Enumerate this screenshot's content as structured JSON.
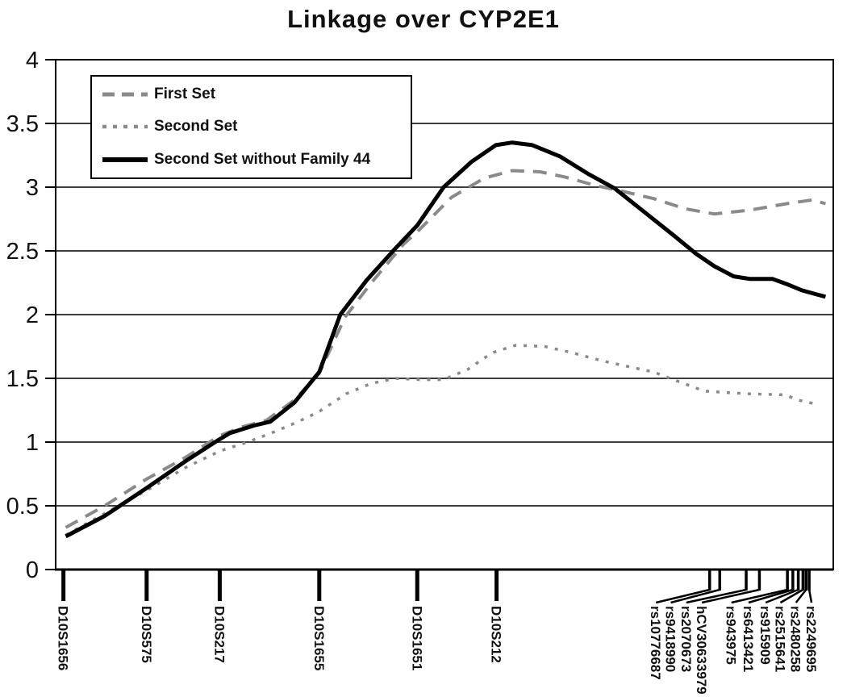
{
  "chart_data": {
    "type": "line",
    "title": "Linkage over CYP2E1",
    "xlabel": "",
    "ylabel": "",
    "ylim": [
      0,
      4
    ],
    "yticks": [
      0,
      0.5,
      1,
      1.5,
      2,
      2.5,
      3,
      3.5,
      4
    ],
    "ytick_labels": [
      "0",
      "0.5",
      "1",
      "1.5",
      "2",
      "2.5",
      "3",
      "3.5",
      "4"
    ],
    "grid": "horizontal",
    "legend_position": "top-left-inside",
    "colors": {
      "primary_line": "#000000",
      "secondary_lines": "#8a8a8a",
      "gridline": "#3d3d3d"
    },
    "x_axis_markers": [
      {
        "label": "D10S1656",
        "pos": 0.01
      },
      {
        "label": "D10S575",
        "pos": 0.117
      },
      {
        "label": "D10S217",
        "pos": 0.211
      },
      {
        "label": "D10S1655",
        "pos": 0.339
      },
      {
        "label": "D10S1651",
        "pos": 0.465
      },
      {
        "label": "D10S212",
        "pos": 0.567
      }
    ],
    "snp_markers": [
      {
        "label": "rs10776687",
        "tick_pos": 0.841,
        "label_pos": 0.772
      },
      {
        "label": "rs9418990",
        "tick_pos": 0.854,
        "label_pos": 0.791
      },
      {
        "label": "rs2070673",
        "tick_pos": 0.888,
        "label_pos": 0.811
      },
      {
        "label": "hCV30633979",
        "tick_pos": 0.905,
        "label_pos": 0.831
      },
      {
        "label": "rs943975",
        "tick_pos": 0.941,
        "label_pos": 0.869
      },
      {
        "label": "rs6413421",
        "tick_pos": 0.948,
        "label_pos": 0.891
      },
      {
        "label": "rs915909",
        "tick_pos": 0.955,
        "label_pos": 0.913
      },
      {
        "label": "rs2515641",
        "tick_pos": 0.961,
        "label_pos": 0.932
      },
      {
        "label": "rs2480258",
        "tick_pos": 0.965,
        "label_pos": 0.952
      },
      {
        "label": "rs2249695",
        "tick_pos": 0.969,
        "label_pos": 0.972
      }
    ],
    "series": [
      {
        "name": "First Set",
        "color": "#8a8a8a",
        "style": "dashed",
        "width": 4,
        "points": [
          [
            0.013,
            0.33
          ],
          [
            0.063,
            0.5
          ],
          [
            0.117,
            0.71
          ],
          [
            0.167,
            0.88
          ],
          [
            0.211,
            1.05
          ],
          [
            0.24,
            1.12
          ],
          [
            0.271,
            1.17
          ],
          [
            0.307,
            1.33
          ],
          [
            0.339,
            1.54
          ],
          [
            0.372,
            1.98
          ],
          [
            0.406,
            2.25
          ],
          [
            0.447,
            2.55
          ],
          [
            0.465,
            2.65
          ],
          [
            0.509,
            2.92
          ],
          [
            0.551,
            3.07
          ],
          [
            0.587,
            3.13
          ],
          [
            0.623,
            3.12
          ],
          [
            0.655,
            3.08
          ],
          [
            0.696,
            3.01
          ],
          [
            0.727,
            2.97
          ],
          [
            0.769,
            2.91
          ],
          [
            0.81,
            2.83
          ],
          [
            0.847,
            2.79
          ],
          [
            0.893,
            2.82
          ],
          [
            0.94,
            2.87
          ],
          [
            0.973,
            2.9
          ],
          [
            0.99,
            2.87
          ]
        ]
      },
      {
        "name": "Second Set",
        "color": "#8a8a8a",
        "style": "dotted",
        "width": 3.5,
        "points": [
          [
            0.013,
            0.27
          ],
          [
            0.063,
            0.44
          ],
          [
            0.117,
            0.62
          ],
          [
            0.167,
            0.8
          ],
          [
            0.211,
            0.93
          ],
          [
            0.247,
            1.0
          ],
          [
            0.281,
            1.08
          ],
          [
            0.312,
            1.16
          ],
          [
            0.339,
            1.24
          ],
          [
            0.374,
            1.38
          ],
          [
            0.406,
            1.46
          ],
          [
            0.437,
            1.5
          ],
          [
            0.468,
            1.49
          ],
          [
            0.499,
            1.49
          ],
          [
            0.53,
            1.57
          ],
          [
            0.561,
            1.7
          ],
          [
            0.592,
            1.76
          ],
          [
            0.629,
            1.75
          ],
          [
            0.665,
            1.7
          ],
          [
            0.701,
            1.64
          ],
          [
            0.738,
            1.59
          ],
          [
            0.769,
            1.55
          ],
          [
            0.79,
            1.5
          ],
          [
            0.834,
            1.4
          ],
          [
            0.886,
            1.38
          ],
          [
            0.938,
            1.37
          ],
          [
            0.955,
            1.33
          ],
          [
            0.976,
            1.3
          ]
        ]
      },
      {
        "name": "Second Set without Family 44",
        "color": "#000000",
        "style": "solid",
        "width": 5,
        "points": [
          [
            0.013,
            0.26
          ],
          [
            0.063,
            0.42
          ],
          [
            0.117,
            0.64
          ],
          [
            0.167,
            0.85
          ],
          [
            0.205,
            1.0
          ],
          [
            0.224,
            1.07
          ],
          [
            0.255,
            1.13
          ],
          [
            0.276,
            1.16
          ],
          [
            0.307,
            1.31
          ],
          [
            0.339,
            1.55
          ],
          [
            0.366,
            2.0
          ],
          [
            0.4,
            2.27
          ],
          [
            0.437,
            2.52
          ],
          [
            0.465,
            2.7
          ],
          [
            0.499,
            3.0
          ],
          [
            0.535,
            3.2
          ],
          [
            0.566,
            3.33
          ],
          [
            0.587,
            3.35
          ],
          [
            0.613,
            3.33
          ],
          [
            0.649,
            3.24
          ],
          [
            0.686,
            3.1
          ],
          [
            0.719,
            2.99
          ],
          [
            0.758,
            2.8
          ],
          [
            0.795,
            2.62
          ],
          [
            0.823,
            2.48
          ],
          [
            0.847,
            2.38
          ],
          [
            0.872,
            2.3
          ],
          [
            0.893,
            2.28
          ],
          [
            0.922,
            2.28
          ],
          [
            0.94,
            2.24
          ],
          [
            0.96,
            2.19
          ],
          [
            0.99,
            2.14
          ]
        ]
      }
    ]
  }
}
